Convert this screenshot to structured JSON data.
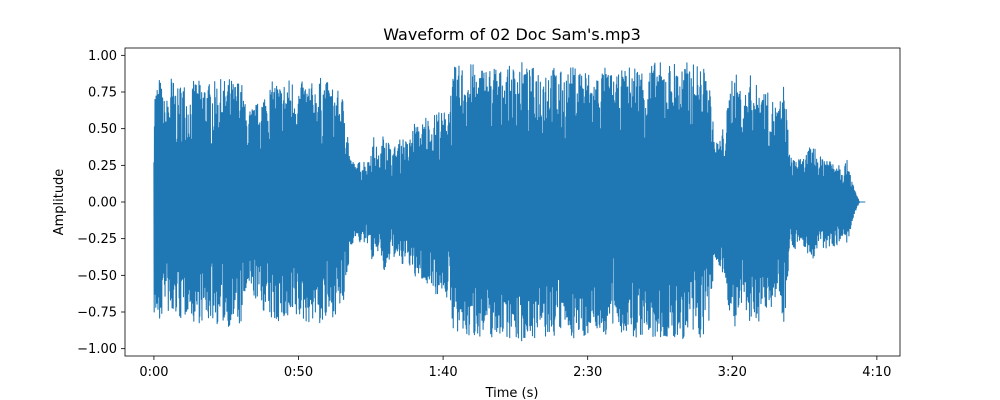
{
  "chart_data": {
    "type": "line",
    "title": "Waveform of 02 Doc Sam's.mp3",
    "xlabel": "Time (s)",
    "ylabel": "Amplitude",
    "xlim": [
      -10,
      258
    ],
    "ylim": [
      -1.05,
      1.05
    ],
    "grid": false,
    "legend": "none",
    "x_ticks": [
      {
        "value": 0,
        "label": "0:00"
      },
      {
        "value": 50,
        "label": "0:50"
      },
      {
        "value": 100,
        "label": "1:40"
      },
      {
        "value": 150,
        "label": "2:30"
      },
      {
        "value": 200,
        "label": "3:20"
      },
      {
        "value": 250,
        "label": "4:10"
      }
    ],
    "y_ticks": [
      {
        "value": 1.0,
        "label": "1.00"
      },
      {
        "value": 0.75,
        "label": "0.75"
      },
      {
        "value": 0.5,
        "label": "0.50"
      },
      {
        "value": 0.25,
        "label": "0.25"
      },
      {
        "value": 0.0,
        "label": "0.00"
      },
      {
        "value": -0.25,
        "label": "−0.25"
      },
      {
        "value": -0.5,
        "label": "−0.50"
      },
      {
        "value": -0.75,
        "label": "−0.75"
      },
      {
        "value": -1.0,
        "label": "−1.00"
      }
    ],
    "series": [
      {
        "color": "#1f77b4",
        "envelope": {
          "time": [
            0,
            2,
            4,
            6,
            8,
            10,
            12,
            14,
            16,
            18,
            20,
            22,
            24,
            26,
            28,
            30,
            32,
            34,
            36,
            38,
            40,
            42,
            44,
            46,
            48,
            50,
            52,
            54,
            56,
            58,
            60,
            62,
            64,
            66,
            68,
            70,
            72,
            74,
            76,
            78,
            80,
            82,
            84,
            86,
            88,
            90,
            92,
            94,
            96,
            98,
            100,
            102,
            104,
            106,
            108,
            110,
            112,
            114,
            116,
            118,
            120,
            122,
            124,
            126,
            128,
            130,
            132,
            134,
            136,
            138,
            140,
            142,
            144,
            146,
            148,
            150,
            152,
            154,
            156,
            158,
            160,
            162,
            164,
            166,
            168,
            170,
            172,
            174,
            176,
            178,
            180,
            182,
            184,
            186,
            188,
            190,
            192,
            194,
            196,
            198,
            200,
            202,
            204,
            206,
            208,
            210,
            212,
            214,
            216,
            218,
            220,
            222,
            224,
            226,
            228,
            230,
            232,
            234,
            236,
            238,
            240,
            242,
            244
          ],
          "peak": [
            0.77,
            0.86,
            0.66,
            0.87,
            0.76,
            0.85,
            0.72,
            0.84,
            0.82,
            0.83,
            0.8,
            0.84,
            0.83,
            0.85,
            0.82,
            0.86,
            0.62,
            0.65,
            0.68,
            0.75,
            0.8,
            0.84,
            0.8,
            0.85,
            0.84,
            0.8,
            0.83,
            0.82,
            0.8,
            0.86,
            0.82,
            0.78,
            0.75,
            0.7,
            0.3,
            0.25,
            0.3,
            0.28,
            0.45,
            0.3,
            0.55,
            0.35,
            0.4,
            0.45,
            0.4,
            0.55,
            0.5,
            0.6,
            0.55,
            0.65,
            0.6,
            0.7,
            0.92,
            0.94,
            0.93,
            0.95,
            0.9,
            0.94,
            0.92,
            0.95,
            0.9,
            0.93,
            0.92,
            0.97,
            0.95,
            0.9,
            0.94,
            0.92,
            0.95,
            0.93,
            0.9,
            0.88,
            0.92,
            0.93,
            0.94,
            0.9,
            0.85,
            0.9,
            0.92,
            0.88,
            0.85,
            0.9,
            0.92,
            0.95,
            0.93,
            0.9,
            0.95,
            0.96,
            0.94,
            0.95,
            0.96,
            0.93,
            0.95,
            0.94,
            0.95,
            0.92,
            0.85,
            0.4,
            0.45,
            0.6,
            0.9,
            0.85,
            0.7,
            0.88,
            0.8,
            0.82,
            0.75,
            0.7,
            0.65,
            0.83,
            0.3,
            0.32,
            0.28,
            0.35,
            0.4,
            0.3,
            0.33,
            0.3,
            0.3,
            0.25,
            0.29,
            0.1,
            0.0
          ]
        }
      }
    ]
  }
}
